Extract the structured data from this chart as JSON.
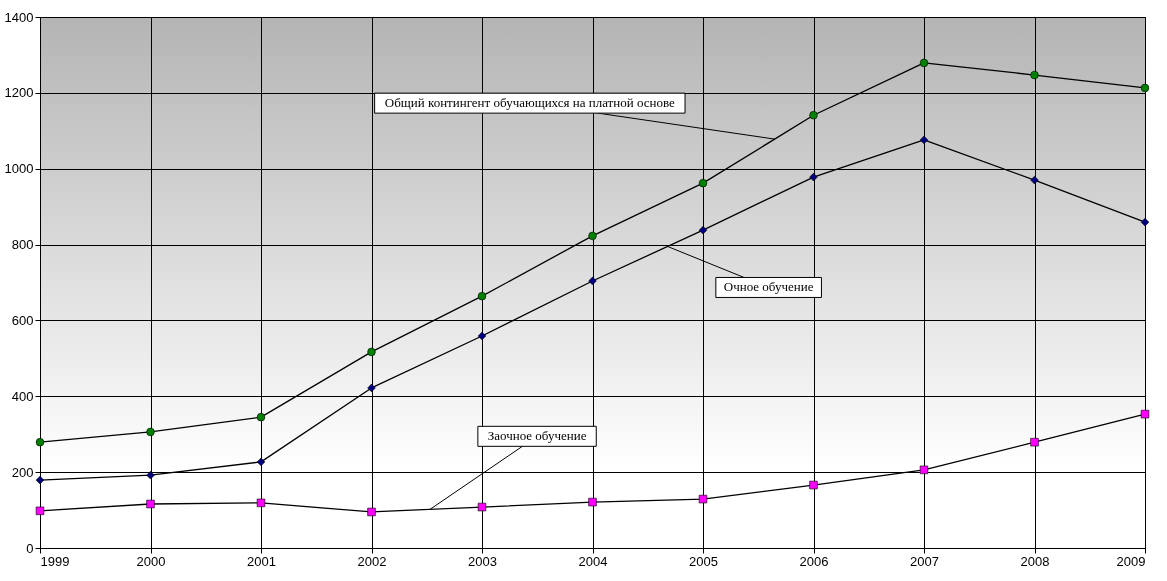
{
  "chart_data": {
    "type": "line",
    "x": [
      1999,
      2000,
      2001,
      2002,
      2003,
      2004,
      2005,
      2006,
      2007,
      2008,
      2009
    ],
    "xlim": [
      1999,
      2009
    ],
    "xticks": [
      1999,
      2000,
      2001,
      2002,
      2003,
      2004,
      2005,
      2006,
      2007,
      2008,
      2009
    ],
    "ylim": [
      0,
      1400
    ],
    "yticks": [
      0,
      200,
      400,
      600,
      800,
      1000,
      1200,
      1400
    ],
    "grid": true,
    "series": [
      {
        "color": "#008000",
        "marker": "circle",
        "values": [
          279,
          306,
          345,
          517,
          664,
          823,
          962,
          1141,
          1279,
          1247,
          1213
        ]
      },
      {
        "color": "#000080",
        "marker": "diamond",
        "values": [
          179,
          192,
          227,
          422,
          559,
          704,
          838,
          978,
          1076,
          970,
          859
        ]
      },
      {
        "color": "#ff00ff",
        "marker": "square",
        "values": [
          98,
          116,
          119,
          95,
          108,
          121,
          129,
          166,
          206,
          279,
          353
        ]
      }
    ],
    "annotations": [
      {
        "text": "Общий контингент обучающихся на платной основе",
        "x": 2005.65,
        "y": 1078
      },
      {
        "text": "Очное обучение",
        "x": 2004.68,
        "y": 795
      },
      {
        "text": "Заочное обучение",
        "x": 2002.53,
        "y": 102
      }
    ]
  }
}
